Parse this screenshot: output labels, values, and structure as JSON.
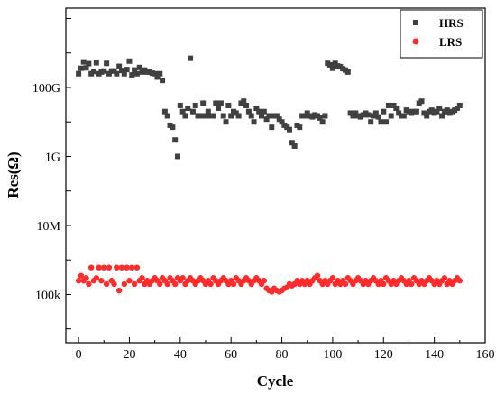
{
  "chart_data": {
    "type": "scatter",
    "title": "",
    "xlabel": "Cycle",
    "ylabel": "Res(Ω)",
    "xlim": [
      -5,
      160
    ],
    "ylim_log10": [
      3.6,
      13.3
    ],
    "y_scale": "log",
    "x_ticks": [
      0,
      20,
      40,
      60,
      80,
      100,
      120,
      140,
      160
    ],
    "y_ticks": [
      {
        "value": 100000,
        "label": "100k"
      },
      {
        "value": 10000000,
        "label": "10M"
      },
      {
        "value": 1000000000,
        "label": "1G"
      },
      {
        "value": 100000000000,
        "label": "100G"
      }
    ],
    "grid": false,
    "legend_position": "top-right",
    "series": [
      {
        "name": "HRS",
        "marker": "square",
        "color": "#404040",
        "x": [
          0,
          1,
          2,
          3,
          4,
          5,
          6,
          7,
          8,
          9,
          10,
          11,
          12,
          13,
          14,
          15,
          16,
          17,
          18,
          19,
          20,
          21,
          22,
          23,
          24,
          25,
          26,
          27,
          28,
          29,
          30,
          31,
          32,
          33,
          34,
          35,
          36,
          37,
          38,
          39,
          40,
          41,
          42,
          43,
          44,
          45,
          46,
          47,
          48,
          49,
          50,
          51,
          52,
          53,
          54,
          55,
          56,
          57,
          58,
          59,
          60,
          61,
          62,
          63,
          64,
          65,
          66,
          67,
          68,
          69,
          70,
          71,
          72,
          73,
          74,
          75,
          76,
          77,
          78,
          79,
          80,
          81,
          82,
          83,
          84,
          85,
          86,
          87,
          88,
          89,
          90,
          91,
          92,
          93,
          94,
          95,
          96,
          97,
          98,
          99,
          100,
          101,
          102,
          103,
          104,
          105,
          106,
          107,
          108,
          109,
          110,
          111,
          112,
          113,
          114,
          115,
          116,
          117,
          118,
          119,
          120,
          121,
          122,
          123,
          124,
          125,
          126,
          127,
          128,
          129,
          130,
          131,
          132,
          133,
          134,
          135,
          136,
          137,
          138,
          139,
          140,
          141,
          142,
          143,
          144,
          145,
          146,
          147,
          148,
          149,
          150
        ],
        "y": [
          250000000000.0,
          360000000000.0,
          550000000000.0,
          370000000000.0,
          490000000000.0,
          250000000000.0,
          290000000000.0,
          520000000000.0,
          250000000000.0,
          280000000000.0,
          300000000000.0,
          500000000000.0,
          250000000000.0,
          300000000000.0,
          300000000000.0,
          250000000000.0,
          410000000000.0,
          310000000000.0,
          250000000000.0,
          330000000000.0,
          580000000000.0,
          230000000000.0,
          320000000000.0,
          250000000000.0,
          380000000000.0,
          280000000000.0,
          320000000000.0,
          280000000000.0,
          280000000000.0,
          260000000000.0,
          250000000000.0,
          200000000000.0,
          250000000000.0,
          160000000000.0,
          20000000000.0,
          15000000000.0,
          8000000000.0,
          7000000000.0,
          3000000000.0,
          1000000000.0,
          30000000000.0,
          20000000000.0,
          15000000000.0,
          25000000000.0,
          700000000000.0,
          20000000000.0,
          30000000000.0,
          15000000000.0,
          15000000000.0,
          35000000000.0,
          15000000000.0,
          20000000000.0,
          15000000000.0,
          15000000000.0,
          35000000000.0,
          25000000000.0,
          35000000000.0,
          15000000000.0,
          10000000000.0,
          30000000000.0,
          15000000000.0,
          20000000000.0,
          18000000000.0,
          15000000000.0,
          35000000000.0,
          40000000000.0,
          30000000000.0,
          20000000000.0,
          15000000000.0,
          10000000000.0,
          25000000000.0,
          20000000000.0,
          15000000000.0,
          20000000000.0,
          12000000000.0,
          15000000000.0,
          7000000000.0,
          15000000000.0,
          15000000000.0,
          12000000000.0,
          10000000000.0,
          8000000000.0,
          7000000000.0,
          6000000000.0,
          2500000000.0,
          2000000000.0,
          8000000000.0,
          7000000000.0,
          15000000000.0,
          15000000000.0,
          18000000000.0,
          15000000000.0,
          14000000000.0,
          16000000000.0,
          15000000000.0,
          13000000000.0,
          10000000000.0,
          15000000000.0,
          500000000000.0,
          450000000000.0,
          360000000000.0,
          500000000000.0,
          420000000000.0,
          400000000000.0,
          350000000000.0,
          320000000000.0,
          280000000000.0,
          18000000000.0,
          15000000000.0,
          18000000000.0,
          15000000000.0,
          14000000000.0,
          16000000000.0,
          18000000000.0,
          16000000000.0,
          10000000000.0,
          15000000000.0,
          18000000000.0,
          14000000000.0,
          10000000000.0,
          20000000000.0,
          10000000000.0,
          30000000000.0,
          15000000000.0,
          30000000000.0,
          25000000000.0,
          18000000000.0,
          15000000000.0,
          15000000000.0,
          22000000000.0,
          20000000000.0,
          18000000000.0,
          20000000000.0,
          20000000000.0,
          35000000000.0,
          40000000000.0,
          18000000000.0,
          15000000000.0,
          20000000000.0,
          22000000000.0,
          18000000000.0,
          20000000000.0,
          25000000000.0,
          15000000000.0,
          20000000000.0,
          22000000000.0,
          18000000000.0,
          20000000000.0,
          22000000000.0,
          25000000000.0,
          30000000000.0
        ]
      },
      {
        "name": "LRS",
        "marker": "circle",
        "color": "#ff2a2a",
        "x": [
          0,
          1,
          2,
          3,
          4,
          5,
          6,
          7,
          8,
          9,
          10,
          11,
          12,
          13,
          14,
          15,
          16,
          17,
          18,
          19,
          20,
          21,
          22,
          23,
          24,
          25,
          26,
          27,
          28,
          29,
          30,
          31,
          32,
          33,
          34,
          35,
          36,
          37,
          38,
          39,
          40,
          41,
          42,
          43,
          44,
          45,
          46,
          47,
          48,
          49,
          50,
          51,
          52,
          53,
          54,
          55,
          56,
          57,
          58,
          59,
          60,
          61,
          62,
          63,
          64,
          65,
          66,
          67,
          68,
          69,
          70,
          71,
          72,
          73,
          74,
          75,
          76,
          77,
          78,
          79,
          80,
          81,
          82,
          83,
          84,
          85,
          86,
          87,
          88,
          89,
          90,
          91,
          92,
          93,
          94,
          95,
          96,
          97,
          98,
          99,
          100,
          101,
          102,
          103,
          104,
          105,
          106,
          107,
          108,
          109,
          110,
          111,
          112,
          113,
          114,
          115,
          116,
          117,
          118,
          119,
          120,
          121,
          122,
          123,
          124,
          125,
          126,
          127,
          128,
          129,
          130,
          131,
          132,
          133,
          134,
          135,
          136,
          137,
          138,
          139,
          140,
          141,
          142,
          143,
          144,
          145,
          146,
          147,
          148,
          149,
          150
        ],
        "y": [
          250000.0,
          350000.0,
          250000.0,
          300000.0,
          200000.0,
          600000.0,
          250000.0,
          300000.0,
          600000.0,
          250000.0,
          600000.0,
          200000.0,
          600000.0,
          250000.0,
          200000.0,
          600000.0,
          130000.0,
          600000.0,
          200000.0,
          600000.0,
          250000.0,
          600000.0,
          200000.0,
          600000.0,
          250000.0,
          300000.0,
          200000.0,
          250000.0,
          200000.0,
          250000.0,
          300000.0,
          250000.0,
          200000.0,
          300000.0,
          250000.0,
          200000.0,
          300000.0,
          250000.0,
          200000.0,
          300000.0,
          250000.0,
          300000.0,
          200000.0,
          250000.0,
          300000.0,
          250000.0,
          200000.0,
          250000.0,
          300000.0,
          250000.0,
          200000.0,
          250000.0,
          200000.0,
          300000.0,
          250000.0,
          200000.0,
          250000.0,
          300000.0,
          250000.0,
          200000.0,
          250000.0,
          200000.0,
          300000.0,
          250000.0,
          200000.0,
          250000.0,
          300000.0,
          250000.0,
          200000.0,
          250000.0,
          300000.0,
          250000.0,
          200000.0,
          250000.0,
          150000.0,
          130000.0,
          120000.0,
          150000.0,
          130000.0,
          120000.0,
          130000.0,
          150000.0,
          160000.0,
          200000.0,
          180000.0,
          200000.0,
          250000.0,
          200000.0,
          250000.0,
          200000.0,
          250000.0,
          200000.0,
          250000.0,
          300000.0,
          350000.0,
          250000.0,
          200000.0,
          250000.0,
          200000.0,
          250000.0,
          300000.0,
          200000.0,
          250000.0,
          200000.0,
          250000.0,
          200000.0,
          300000.0,
          250000.0,
          200000.0,
          250000.0,
          300000.0,
          250000.0,
          200000.0,
          250000.0,
          200000.0,
          250000.0,
          300000.0,
          250000.0,
          200000.0,
          250000.0,
          200000.0,
          300000.0,
          250000.0,
          200000.0,
          250000.0,
          200000.0,
          250000.0,
          300000.0,
          250000.0,
          200000.0,
          250000.0,
          200000.0,
          300000.0,
          250000.0,
          200000.0,
          250000.0,
          200000.0,
          250000.0,
          300000.0,
          250000.0,
          200000.0,
          250000.0,
          200000.0,
          250000.0,
          300000.0,
          200000.0,
          250000.0,
          200000.0,
          250000.0,
          300000.0,
          250000.0
        ]
      }
    ]
  }
}
